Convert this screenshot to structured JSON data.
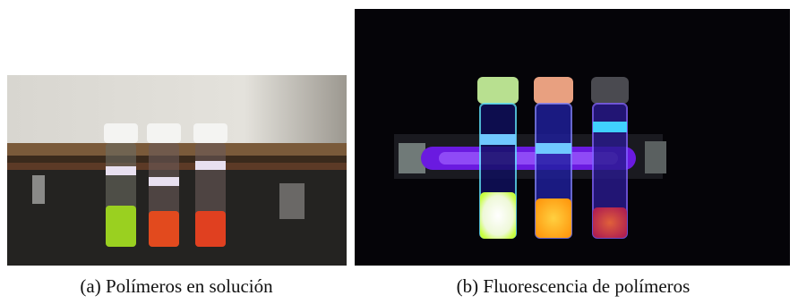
{
  "figure": {
    "subfigures": [
      {
        "label": "(a)",
        "caption": "Polímeros en solución"
      },
      {
        "label": "(b)",
        "caption": "Fluorescencia de polímeros"
      }
    ]
  }
}
